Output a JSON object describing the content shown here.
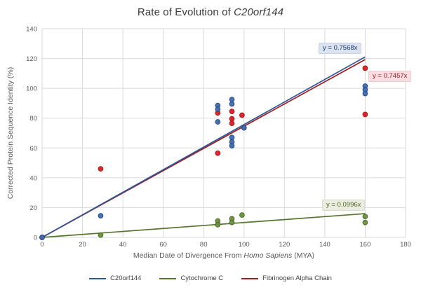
{
  "title": {
    "prefix": "Rate of Evolution of ",
    "gene": "C20orf144"
  },
  "chart_data": {
    "type": "scatter",
    "title": "Rate of Evolution of C20orf144",
    "xlabel": "Median Date of Divergence From Homo Sapiens (MYA)",
    "xlabel_parts": {
      "prefix": "Median Date of Divergence From ",
      "italic": "Homo Sapiens",
      "suffix": " (MYA)"
    },
    "ylabel": "Corrected Protein Sequence Identity (%)",
    "xlim": [
      0,
      180
    ],
    "ylim": [
      0,
      140
    ],
    "xticks": [
      0,
      20,
      40,
      60,
      80,
      100,
      120,
      140,
      160,
      180
    ],
    "yticks": [
      0,
      20,
      40,
      60,
      80,
      100,
      120,
      140
    ],
    "grid": true,
    "grid_color": "#d9d9d9",
    "tick_color": "#595959",
    "legend_position": "bottom",
    "series": [
      {
        "name": "C20orf144",
        "line_color": "#2f5597",
        "dot_color": "#3e6cb3",
        "dot_edge": "#28497e",
        "trend_label": "y = 0.7568x",
        "trend": {
          "slope": 0.7568,
          "x_start": 0,
          "x_end": 160
        },
        "points": [
          [
            0,
            0
          ],
          [
            29,
            14.5
          ],
          [
            87,
            88.5
          ],
          [
            87,
            86
          ],
          [
            87,
            77.5
          ],
          [
            94,
            92.5
          ],
          [
            94,
            89.5
          ],
          [
            94,
            67
          ],
          [
            94,
            64
          ],
          [
            94,
            61.5
          ],
          [
            100,
            73.5
          ],
          [
            160,
            101.5
          ],
          [
            160,
            99
          ],
          [
            160,
            96.5
          ]
        ]
      },
      {
        "name": "Cytochrome C",
        "line_color": "#55752e",
        "dot_color": "#6d9142",
        "dot_edge": "#48621f",
        "trend_label": "y = 0.0996x",
        "trend": {
          "slope": 0.0996,
          "x_start": 0,
          "x_end": 160
        },
        "points": [
          [
            0,
            0
          ],
          [
            29,
            1.5
          ],
          [
            87,
            11
          ],
          [
            87,
            8.5
          ],
          [
            94,
            12.5
          ],
          [
            94,
            10
          ],
          [
            99,
            15
          ],
          [
            160,
            14
          ],
          [
            160,
            10
          ]
        ]
      },
      {
        "name": "Fibrinogen Alpha Chain",
        "line_color": "#9e1f24",
        "dot_color": "#da2127",
        "dot_edge": "#a21418",
        "trend_label": "y = 0.7457x",
        "trend": {
          "slope": 0.7457,
          "x_start": 0,
          "x_end": 160
        },
        "points": [
          [
            0,
            0
          ],
          [
            29,
            46
          ],
          [
            87,
            83.5
          ],
          [
            87,
            56.5
          ],
          [
            94,
            84.5
          ],
          [
            94,
            79.5
          ],
          [
            94,
            76.5
          ],
          [
            99,
            82
          ],
          [
            100,
            73.5
          ],
          [
            160,
            113.5
          ],
          [
            160,
            82.5
          ]
        ]
      }
    ]
  }
}
